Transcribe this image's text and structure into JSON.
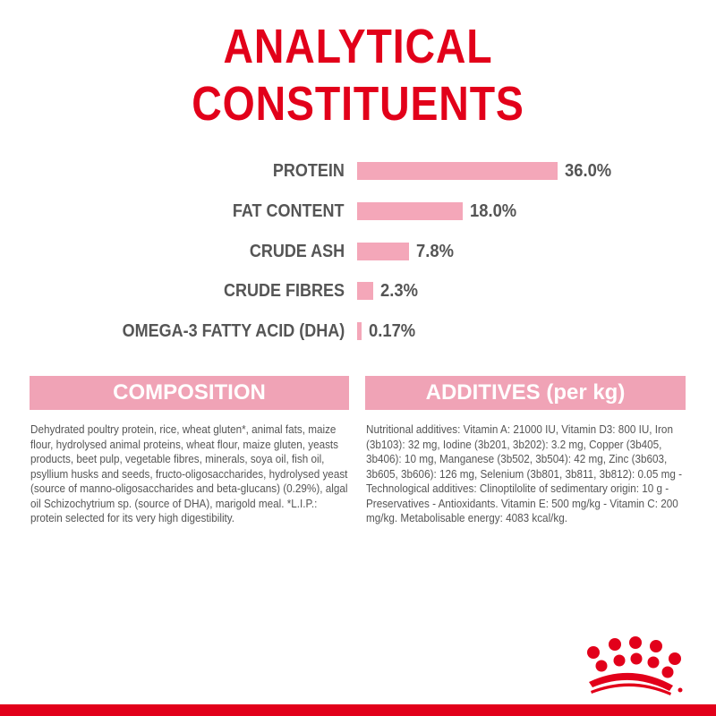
{
  "title": {
    "line1": "ANALYTICAL",
    "line2": "CONSTITUENTS"
  },
  "chart_data": {
    "type": "bar",
    "categories": [
      "PROTEIN",
      "FAT CONTENT",
      "CRUDE ASH",
      "CRUDE FIBRES",
      "OMEGA-3 FATTY ACID (DHA)"
    ],
    "values": [
      36.0,
      18.0,
      7.8,
      2.3,
      0.17
    ],
    "value_labels": [
      "36.0%",
      "18.0%",
      "7.8%",
      "2.3%",
      "0.17%"
    ],
    "orientation": "horizontal",
    "bar_color": "#f4a7b9"
  },
  "composition": {
    "header": "COMPOSITION",
    "text": "Dehydrated poultry protein, rice, wheat gluten*, animal fats, maize flour, hydrolysed animal proteins, wheat flour, maize gluten, yeasts products, beet pulp, vegetable fibres, minerals, soya oil, fish oil, psyllium husks and seeds, fructo-oligosaccharides, hydrolysed yeast (source of manno-oligosaccharides and beta-glucans) (0.29%), algal oil Schizochytrium sp. (source of DHA), marigold meal. *L.I.P.: protein selected for its very high digestibility."
  },
  "additives": {
    "header": "ADDITIVES (per kg)",
    "text": "Nutritional additives: Vitamin A: 21000 IU, Vitamin D3: 800 IU, Iron (3b103): 32 mg, Iodine (3b201, 3b202): 3.2 mg, Copper (3b405, 3b406): 10 mg, Manganese (3b502, 3b504): 42 mg, Zinc (3b603, 3b605, 3b606): 126 mg, Selenium (3b801, 3b811, 3b812): 0.05 mg - Technological additives: Clinoptilolite of sedimentary origin: 10 g - Preservatives - Antioxidants. Vitamin E: 500 mg/kg - Vitamin C: 200 mg/kg. Metabolisable energy: 4083 kcal/kg."
  },
  "colors": {
    "brand_red": "#e2001a",
    "pink": "#f0a3b6",
    "text": "#555555"
  },
  "logo": {
    "icon": "royal-canin-crown-icon"
  }
}
